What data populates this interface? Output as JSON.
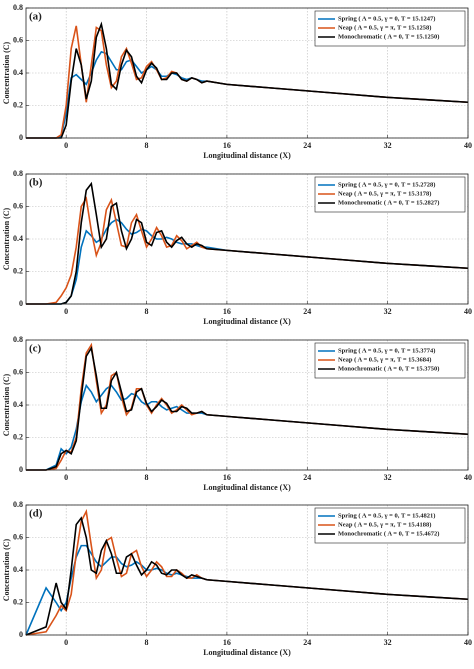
{
  "chart_data": [
    {
      "type": "line",
      "panel_label": "(a)",
      "xlabel": "Longitudinal distance (X)",
      "ylabel": "Concentration (C)",
      "xlim": [
        -4,
        40
      ],
      "ylim": [
        0,
        0.8
      ],
      "xticks": [
        0,
        8,
        16,
        24,
        32,
        40
      ],
      "yticks": [
        0,
        0.2,
        0.4,
        0.6,
        0.8
      ],
      "grid": true,
      "legend": "upper right",
      "x": [
        -4,
        -2,
        -1,
        -0.5,
        0,
        0.5,
        1,
        1.5,
        2,
        2.5,
        3,
        3.5,
        4,
        4.5,
        5,
        5.5,
        6,
        6.5,
        7,
        7.5,
        8,
        8.5,
        9,
        9.5,
        10,
        10.5,
        11,
        11.5,
        12,
        12.5,
        13,
        13.5,
        14,
        16,
        20,
        24,
        28,
        32,
        36,
        40
      ],
      "series": [
        {
          "name": "Spring ( A = 0.5, γ = 0, T = 15.1247)",
          "color": "#0072bd",
          "values": [
            0,
            0,
            0,
            0.01,
            0.15,
            0.37,
            0.39,
            0.36,
            0.33,
            0.4,
            0.48,
            0.53,
            0.52,
            0.47,
            0.42,
            0.42,
            0.47,
            0.48,
            0.44,
            0.4,
            0.42,
            0.44,
            0.42,
            0.38,
            0.38,
            0.4,
            0.39,
            0.37,
            0.36,
            0.37,
            0.36,
            0.35,
            0.35,
            0.33,
            0.31,
            0.29,
            0.27,
            0.25,
            0.235,
            0.22
          ]
        },
        {
          "name": "Neap ( A = 0.5, γ = π, T = 15.1258)",
          "color": "#d95319",
          "values": [
            0,
            0,
            0,
            0.02,
            0.2,
            0.55,
            0.69,
            0.45,
            0.22,
            0.45,
            0.68,
            0.66,
            0.45,
            0.31,
            0.35,
            0.5,
            0.55,
            0.46,
            0.36,
            0.37,
            0.44,
            0.47,
            0.42,
            0.36,
            0.37,
            0.41,
            0.4,
            0.36,
            0.35,
            0.37,
            0.36,
            0.34,
            0.35,
            0.33,
            0.31,
            0.29,
            0.27,
            0.25,
            0.235,
            0.22
          ]
        },
        {
          "name": "Monochromatic ( A = 0, T = 15.1250)",
          "color": "#000000",
          "values": [
            0,
            0,
            0,
            0,
            0.08,
            0.35,
            0.55,
            0.45,
            0.24,
            0.35,
            0.62,
            0.7,
            0.55,
            0.33,
            0.3,
            0.45,
            0.54,
            0.5,
            0.38,
            0.34,
            0.42,
            0.46,
            0.43,
            0.36,
            0.36,
            0.4,
            0.4,
            0.36,
            0.35,
            0.37,
            0.36,
            0.34,
            0.35,
            0.33,
            0.31,
            0.29,
            0.27,
            0.25,
            0.235,
            0.22
          ]
        }
      ]
    },
    {
      "type": "line",
      "panel_label": "(b)",
      "xlabel": "Longitudinal distance (X)",
      "ylabel": "Concentration (C)",
      "xlim": [
        -4,
        40
      ],
      "ylim": [
        0,
        0.8
      ],
      "xticks": [
        0,
        8,
        16,
        24,
        32,
        40
      ],
      "yticks": [
        0,
        0.2,
        0.4,
        0.6,
        0.8
      ],
      "grid": true,
      "legend": "upper right",
      "x": [
        -4,
        -2,
        -1,
        -0.5,
        0,
        0.5,
        1,
        1.5,
        2,
        2.5,
        3,
        3.5,
        4,
        4.5,
        5,
        5.5,
        6,
        6.5,
        7,
        7.5,
        8,
        8.5,
        9,
        9.5,
        10,
        10.5,
        11,
        11.5,
        12,
        12.5,
        13,
        13.5,
        14,
        16,
        20,
        24,
        28,
        32,
        36,
        40
      ],
      "series": [
        {
          "name": "Spring ( A = 0.5, γ = 0, T = 15.2728)",
          "color": "#0072bd",
          "values": [
            0,
            0,
            0,
            0,
            0.01,
            0.05,
            0.15,
            0.35,
            0.45,
            0.42,
            0.38,
            0.4,
            0.46,
            0.5,
            0.52,
            0.5,
            0.46,
            0.43,
            0.44,
            0.46,
            0.45,
            0.42,
            0.4,
            0.4,
            0.41,
            0.4,
            0.38,
            0.37,
            0.37,
            0.37,
            0.36,
            0.35,
            0.35,
            0.33,
            0.31,
            0.29,
            0.27,
            0.25,
            0.235,
            0.22
          ]
        },
        {
          "name": "Neap ( A = 0.5, γ = π, T = 15.3178)",
          "color": "#d95319",
          "values": [
            0,
            0,
            0.01,
            0.05,
            0.1,
            0.18,
            0.35,
            0.6,
            0.65,
            0.45,
            0.3,
            0.38,
            0.58,
            0.64,
            0.5,
            0.36,
            0.35,
            0.5,
            0.55,
            0.45,
            0.35,
            0.4,
            0.47,
            0.42,
            0.35,
            0.36,
            0.42,
            0.39,
            0.34,
            0.36,
            0.38,
            0.35,
            0.34,
            0.33,
            0.31,
            0.29,
            0.27,
            0.25,
            0.235,
            0.22
          ]
        },
        {
          "name": "Monochromatic ( A = 0, T = 15.2827)",
          "color": "#000000",
          "values": [
            0,
            0,
            0,
            0,
            0.01,
            0.05,
            0.2,
            0.5,
            0.7,
            0.74,
            0.55,
            0.35,
            0.4,
            0.6,
            0.62,
            0.45,
            0.34,
            0.4,
            0.52,
            0.5,
            0.38,
            0.36,
            0.44,
            0.45,
            0.38,
            0.35,
            0.39,
            0.41,
            0.37,
            0.35,
            0.37,
            0.36,
            0.34,
            0.33,
            0.31,
            0.29,
            0.27,
            0.25,
            0.235,
            0.22
          ]
        }
      ]
    },
    {
      "type": "line",
      "panel_label": "(c)",
      "xlabel": "Longitudinal distance (X)",
      "ylabel": "Concentration (C)",
      "xlim": [
        -4,
        40
      ],
      "ylim": [
        0,
        0.8
      ],
      "xticks": [
        0,
        8,
        16,
        24,
        32,
        40
      ],
      "yticks": [
        0,
        0.2,
        0.4,
        0.6,
        0.8
      ],
      "grid": true,
      "legend": "upper right",
      "x": [
        -4,
        -2,
        -1,
        -0.5,
        0,
        0.5,
        1,
        1.5,
        2,
        2.5,
        3,
        3.5,
        4,
        4.5,
        5,
        5.5,
        6,
        6.5,
        7,
        7.5,
        8,
        8.5,
        9,
        9.5,
        10,
        10.5,
        11,
        11.5,
        12,
        12.5,
        13,
        13.5,
        14,
        16,
        20,
        24,
        28,
        32,
        36,
        40
      ],
      "series": [
        {
          "name": "Spring ( A = 0.5, γ = 0, T = 15.3774)",
          "color": "#0072bd",
          "values": [
            0,
            0,
            0.03,
            0.13,
            0.1,
            0.14,
            0.25,
            0.42,
            0.52,
            0.48,
            0.42,
            0.46,
            0.5,
            0.52,
            0.48,
            0.43,
            0.44,
            0.47,
            0.46,
            0.42,
            0.4,
            0.42,
            0.42,
            0.39,
            0.37,
            0.38,
            0.39,
            0.37,
            0.35,
            0.35,
            0.35,
            0.35,
            0.34,
            0.33,
            0.31,
            0.29,
            0.27,
            0.25,
            0.235,
            0.22
          ]
        },
        {
          "name": "Neap ( A = 0.5, γ = π, T = 15.3684)",
          "color": "#d95319",
          "values": [
            0,
            0,
            0.01,
            0.06,
            0.12,
            0.11,
            0.2,
            0.5,
            0.72,
            0.77,
            0.55,
            0.35,
            0.4,
            0.58,
            0.6,
            0.45,
            0.34,
            0.38,
            0.5,
            0.5,
            0.4,
            0.35,
            0.4,
            0.44,
            0.4,
            0.35,
            0.37,
            0.4,
            0.37,
            0.34,
            0.35,
            0.36,
            0.34,
            0.33,
            0.31,
            0.29,
            0.27,
            0.25,
            0.235,
            0.22
          ]
        },
        {
          "name": "Monochromatic ( A = 0, T = 15.3750)",
          "color": "#000000",
          "values": [
            0,
            0,
            0.02,
            0.1,
            0.12,
            0.1,
            0.18,
            0.45,
            0.7,
            0.75,
            0.58,
            0.38,
            0.38,
            0.55,
            0.6,
            0.48,
            0.36,
            0.37,
            0.48,
            0.5,
            0.41,
            0.36,
            0.39,
            0.43,
            0.41,
            0.36,
            0.36,
            0.39,
            0.38,
            0.35,
            0.35,
            0.36,
            0.34,
            0.33,
            0.31,
            0.29,
            0.27,
            0.25,
            0.235,
            0.22
          ]
        }
      ]
    },
    {
      "type": "line",
      "panel_label": "(d)",
      "xlabel": "Longitudinal distance (X)",
      "ylabel": "Concentration (C)",
      "xlim": [
        -4,
        40
      ],
      "ylim": [
        0,
        0.8
      ],
      "xticks": [
        0,
        8,
        16,
        24,
        32,
        40
      ],
      "yticks": [
        0,
        0.2,
        0.4,
        0.6,
        0.8
      ],
      "grid": true,
      "legend": "upper right",
      "x": [
        -4,
        -2,
        -1,
        -0.5,
        0,
        0.5,
        1,
        1.5,
        2,
        2.5,
        3,
        3.5,
        4,
        4.5,
        5,
        5.5,
        6,
        6.5,
        7,
        7.5,
        8,
        8.5,
        9,
        9.5,
        10,
        10.5,
        11,
        11.5,
        12,
        12.5,
        13,
        13.5,
        14,
        16,
        20,
        24,
        28,
        32,
        36,
        40
      ],
      "series": [
        {
          "name": "Spring ( A = 0.5, γ = 0, T = 15.4821)",
          "color": "#0072bd",
          "values": [
            0,
            0.29,
            0.2,
            0.15,
            0.2,
            0.35,
            0.48,
            0.55,
            0.55,
            0.5,
            0.45,
            0.42,
            0.45,
            0.48,
            0.48,
            0.44,
            0.42,
            0.43,
            0.45,
            0.43,
            0.4,
            0.4,
            0.41,
            0.4,
            0.38,
            0.37,
            0.38,
            0.37,
            0.36,
            0.35,
            0.35,
            0.35,
            0.34,
            0.33,
            0.31,
            0.29,
            0.27,
            0.25,
            0.235,
            0.22
          ]
        },
        {
          "name": "Neap ( A = 0.5, γ = π, T = 15.4188)",
          "color": "#d95319",
          "values": [
            0,
            0.02,
            0.12,
            0.18,
            0.15,
            0.25,
            0.5,
            0.7,
            0.76,
            0.55,
            0.35,
            0.4,
            0.58,
            0.6,
            0.47,
            0.36,
            0.38,
            0.5,
            0.52,
            0.42,
            0.36,
            0.4,
            0.45,
            0.42,
            0.36,
            0.36,
            0.4,
            0.38,
            0.35,
            0.35,
            0.37,
            0.35,
            0.34,
            0.33,
            0.31,
            0.29,
            0.27,
            0.25,
            0.235,
            0.22
          ]
        },
        {
          "name": "Monochromatic ( A = 0, T = 15.4672)",
          "color": "#000000",
          "values": [
            0,
            0.05,
            0.32,
            0.2,
            0.16,
            0.4,
            0.68,
            0.72,
            0.6,
            0.4,
            0.38,
            0.52,
            0.58,
            0.5,
            0.38,
            0.38,
            0.48,
            0.5,
            0.43,
            0.37,
            0.4,
            0.45,
            0.43,
            0.38,
            0.37,
            0.4,
            0.4,
            0.37,
            0.35,
            0.37,
            0.36,
            0.35,
            0.34,
            0.33,
            0.31,
            0.29,
            0.27,
            0.25,
            0.235,
            0.22
          ]
        }
      ]
    }
  ]
}
